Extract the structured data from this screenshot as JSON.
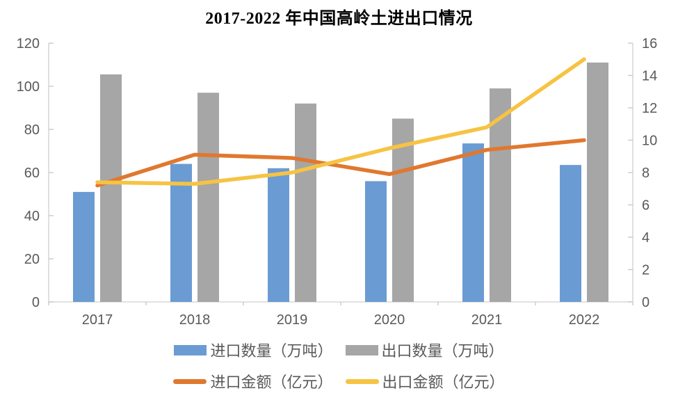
{
  "title": "2017-2022 年中国高岭土进出口情况",
  "chart_data": {
    "type": "bar+line combo",
    "title": "2017-2022 年中国高岭土进出口情况",
    "categories": [
      "2017",
      "2018",
      "2019",
      "2020",
      "2021",
      "2022"
    ],
    "series": [
      {
        "name": "进口数量（万吨）",
        "type": "bar",
        "axis": "left",
        "color": "#6B9BD3",
        "values": [
          51,
          64,
          62,
          56,
          73.5,
          63.5
        ]
      },
      {
        "name": "出口数量（万吨）",
        "type": "bar",
        "axis": "left",
        "color": "#A6A6A6",
        "values": [
          105.5,
          97,
          92,
          85,
          99,
          111
        ]
      },
      {
        "name": "进口金额（亿元）",
        "type": "line",
        "axis": "right",
        "color": "#E0782F",
        "values": [
          7.2,
          9.1,
          8.9,
          7.9,
          9.4,
          10.0
        ]
      },
      {
        "name": "出口金额（亿元）",
        "type": "line",
        "axis": "right",
        "color": "#F6C343",
        "values": [
          7.4,
          7.3,
          8.0,
          9.5,
          10.8,
          15.0
        ]
      }
    ],
    "left_axis": {
      "min": 0,
      "max": 120,
      "step": 20,
      "ticks": [
        "0",
        "20",
        "40",
        "60",
        "80",
        "100",
        "120"
      ]
    },
    "right_axis": {
      "min": 0,
      "max": 16,
      "step": 2,
      "ticks": [
        "0",
        "2",
        "4",
        "6",
        "8",
        "10",
        "12",
        "14",
        "16"
      ]
    },
    "grid": false,
    "legend_position": "bottom"
  },
  "style": {
    "axis_line_color": "#D9D9D9",
    "tick_color": "#C9C9C9",
    "tick_label_color": "#595959",
    "legend_text_color": "#595959"
  }
}
